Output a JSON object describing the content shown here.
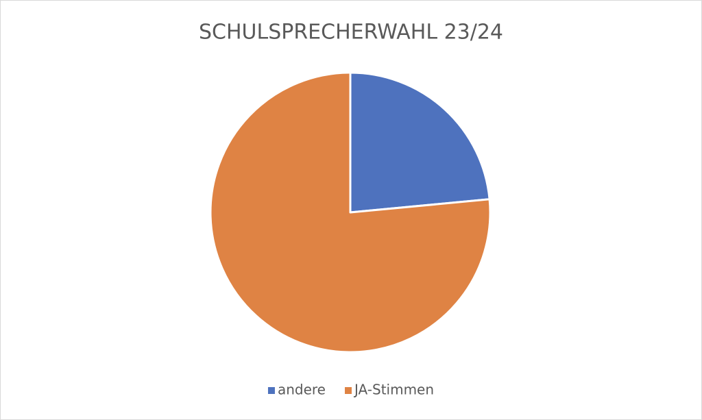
{
  "chart_data": {
    "type": "pie",
    "title": "SCHULSPRECHERWAHL 23/24",
    "categories": [
      "andere",
      "JA-Stimmen"
    ],
    "values": [
      23.5,
      76.5
    ],
    "colors": [
      "#4e72be",
      "#df8344"
    ],
    "legend": "bottom"
  }
}
